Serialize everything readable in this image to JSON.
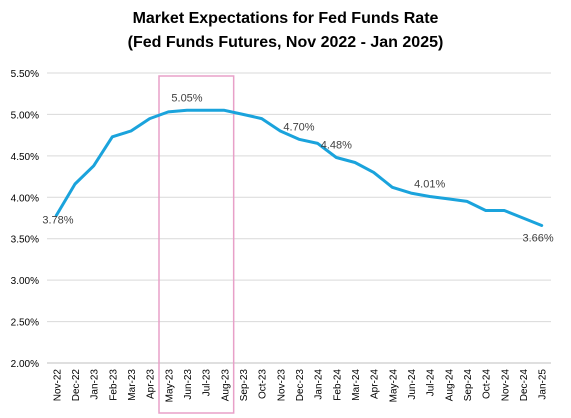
{
  "chart_data": {
    "type": "line",
    "title": "Market Expectations for Fed Funds Rate",
    "subtitle": "(Fed Funds Futures, Nov 2022 - Jan 2025)",
    "categories": [
      "Nov-22",
      "Dec-22",
      "Jan-23",
      "Feb-23",
      "Mar-23",
      "Apr-23",
      "May-23",
      "Jun-23",
      "Jul-23",
      "Aug-23",
      "Sep-23",
      "Oct-23",
      "Nov-23",
      "Dec-23",
      "Jan-24",
      "Feb-24",
      "Mar-24",
      "Apr-24",
      "May-24",
      "Jun-24",
      "Jul-24",
      "Aug-24",
      "Sep-24",
      "Oct-24",
      "Nov-24",
      "Dec-24",
      "Jan-25"
    ],
    "series": [
      {
        "values": [
          3.78,
          4.16,
          4.38,
          4.73,
          4.8,
          4.95,
          5.03,
          5.05,
          5.05,
          5.05,
          5.0,
          4.95,
          4.8,
          4.7,
          4.65,
          4.48,
          4.42,
          4.3,
          4.12,
          4.05,
          4.01,
          3.98,
          3.95,
          3.84,
          3.84,
          3.75,
          3.66
        ]
      }
    ],
    "yticks": [
      "2.00%",
      "2.50%",
      "3.00%",
      "3.50%",
      "4.00%",
      "4.50%",
      "5.00%",
      "5.50%"
    ],
    "ylim": [
      2.0,
      5.5
    ],
    "data_labels": [
      {
        "index": 0,
        "text": "3.78%"
      },
      {
        "index": 7,
        "text": "5.05%"
      },
      {
        "index": 13,
        "text": "4.70%"
      },
      {
        "index": 15,
        "text": "4.48%"
      },
      {
        "index": 20,
        "text": "4.01%"
      },
      {
        "index": 26,
        "text": "3.66%"
      }
    ],
    "highlight": {
      "from_index": 6,
      "to_index": 9,
      "color": "#e8a0c8"
    },
    "line_color": "#1aa3dc",
    "grid": true
  }
}
